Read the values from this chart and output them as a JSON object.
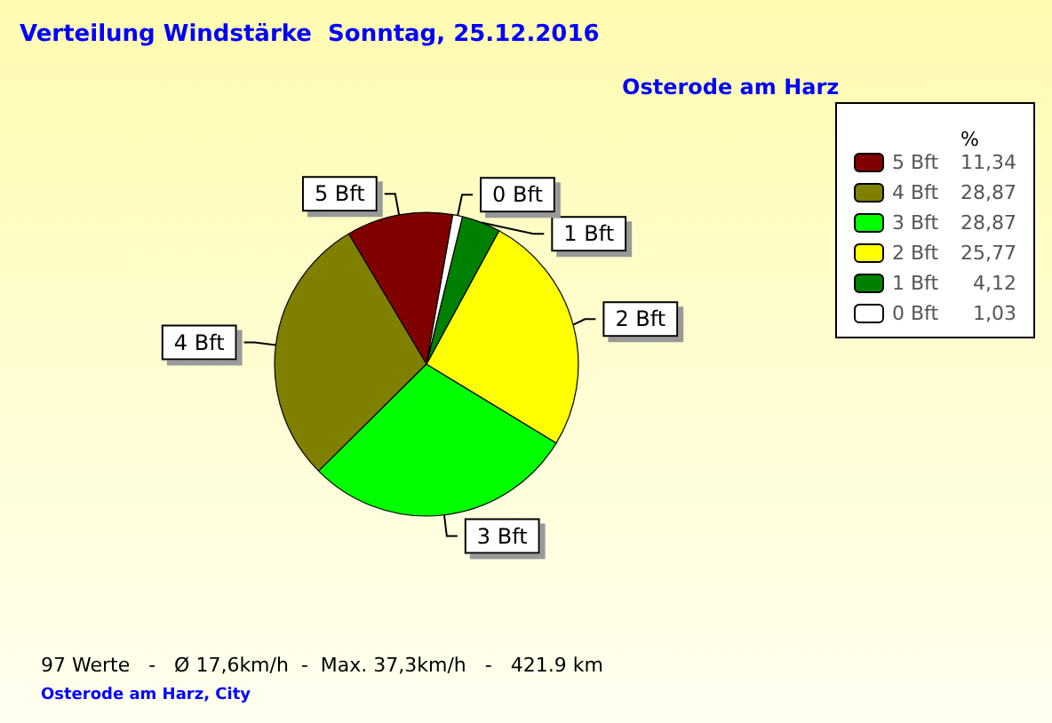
{
  "chart_data": {
    "type": "pie",
    "title": "Verteilung Windstärke  Sonntag, 25.12.2016",
    "subtitle": "Osterode am Harz",
    "legend_title": "%",
    "legend": "top right",
    "categories": [
      "5 Bft",
      "4 Bft",
      "3 Bft",
      "2 Bft",
      "1 Bft",
      "0 Bft"
    ],
    "values": [
      11.34,
      28.87,
      28.87,
      25.77,
      4.12,
      1.03
    ],
    "value_labels": [
      "11,34",
      "28,87",
      "28,87",
      "25,77",
      "4,12",
      "1,03"
    ],
    "colors": [
      "#800000",
      "#808000",
      "#00ff00",
      "#ffff00",
      "#008000",
      "#ffffff"
    ],
    "annotations": [
      "97 Werte   -   Ø 17,6km/h  -  Max. 37,3km/h   -   421.9 km",
      "Osterode am Harz, City"
    ]
  }
}
